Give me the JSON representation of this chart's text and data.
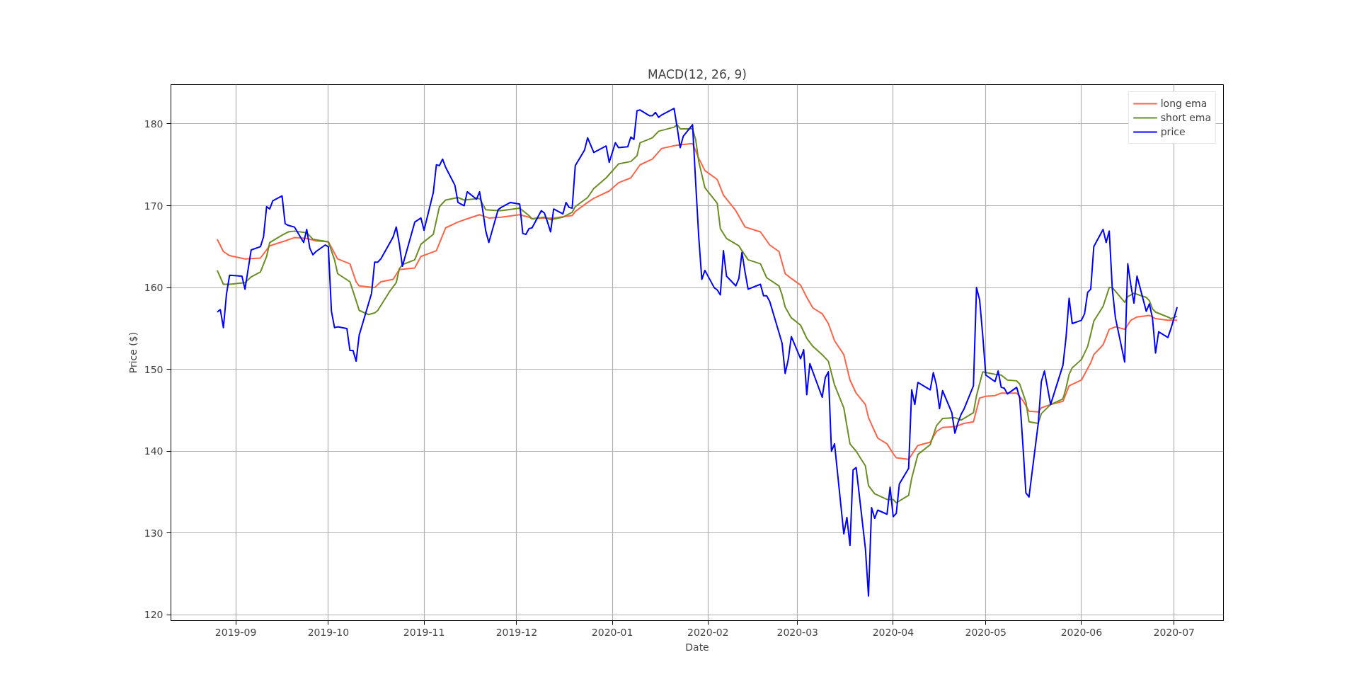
{
  "chart_data": {
    "type": "line",
    "title": "MACD(12, 26, 9)",
    "xlabel": "Date",
    "ylabel": "Price ($)",
    "xlim": [
      "2019-08-11",
      "2020-07-17"
    ],
    "ylim": [
      119.3,
      184.8
    ],
    "xticks": [
      "2019-09",
      "2019-10",
      "2019-11",
      "2019-12",
      "2020-01",
      "2020-02",
      "2020-03",
      "2020-04",
      "2020-05",
      "2020-06",
      "2020-07"
    ],
    "yticks": [
      120,
      130,
      140,
      150,
      160,
      170,
      180
    ],
    "grid": true,
    "legend": "top right",
    "line_style": "solid",
    "series": [
      {
        "name": "long ema",
        "color": "#ff6347",
        "x": [
          "2019-08-26",
          "2019-08-28",
          "2019-08-30",
          "2019-09-04",
          "2019-09-09",
          "2019-09-12",
          "2019-09-17",
          "2019-09-20",
          "2019-09-24",
          "2019-09-27",
          "2019-10-01",
          "2019-10-04",
          "2019-10-08",
          "2019-10-10",
          "2019-10-11",
          "2019-10-16",
          "2019-10-18",
          "2019-10-22",
          "2019-10-24",
          "2019-10-29",
          "2019-10-31",
          "2019-11-05",
          "2019-11-08",
          "2019-11-12",
          "2019-11-15",
          "2019-11-19",
          "2019-11-22",
          "2019-11-26",
          "2019-12-02",
          "2019-12-05",
          "2019-12-06",
          "2019-12-10",
          "2019-12-13",
          "2019-12-17",
          "2019-12-19",
          "2019-12-20",
          "2019-12-24",
          "2019-12-26",
          "2019-12-31",
          "2020-01-03",
          "2020-01-07",
          "2020-01-10",
          "2020-01-14",
          "2020-01-17",
          "2020-01-22",
          "2020-01-27",
          "2020-01-29",
          "2020-01-31",
          "2020-02-04",
          "2020-02-06",
          "2020-02-10",
          "2020-02-13",
          "2020-02-18",
          "2020-02-21",
          "2020-02-24",
          "2020-02-26",
          "2020-02-28",
          "2020-03-02",
          "2020-03-04",
          "2020-03-06",
          "2020-03-09",
          "2020-03-11",
          "2020-03-13",
          "2020-03-16",
          "2020-03-18",
          "2020-03-20",
          "2020-03-23",
          "2020-03-24",
          "2020-03-27",
          "2020-03-30",
          "2020-04-01",
          "2020-04-02",
          "2020-04-06",
          "2020-04-09",
          "2020-04-13",
          "2020-04-15",
          "2020-04-17",
          "2020-04-21",
          "2020-04-24",
          "2020-04-27",
          "2020-04-29",
          "2020-05-01",
          "2020-05-04",
          "2020-05-06",
          "2020-05-11",
          "2020-05-13",
          "2020-05-15",
          "2020-05-18",
          "2020-05-19",
          "2020-05-22",
          "2020-05-26",
          "2020-05-28",
          "2020-06-01",
          "2020-06-04",
          "2020-06-05",
          "2020-06-08",
          "2020-06-10",
          "2020-06-12",
          "2020-06-15",
          "2020-06-17",
          "2020-06-19",
          "2020-06-23",
          "2020-06-25",
          "2020-06-29",
          "2020-07-02"
        ],
        "values": [
          165.9,
          164.4,
          163.9,
          163.5,
          163.6,
          165.1,
          165.7,
          166.1,
          166.0,
          165.7,
          165.6,
          163.5,
          162.9,
          160.7,
          160.2,
          160.0,
          160.7,
          161.0,
          162.2,
          162.4,
          163.8,
          164.5,
          167.3,
          168.0,
          168.4,
          168.9,
          168.5,
          168.6,
          168.9,
          168.6,
          168.4,
          168.5,
          168.5,
          168.7,
          168.8,
          169.3,
          170.4,
          170.9,
          171.8,
          172.8,
          173.4,
          175.0,
          175.7,
          177.0,
          177.4,
          177.6,
          175.8,
          174.3,
          173.2,
          171.3,
          169.4,
          167.4,
          166.8,
          165.2,
          164.4,
          161.7,
          161.1,
          160.3,
          158.8,
          157.5,
          156.8,
          155.6,
          153.5,
          151.8,
          148.7,
          147.1,
          145.7,
          144.1,
          141.6,
          140.9,
          139.7,
          139.2,
          139.0,
          140.7,
          141.1,
          142.4,
          142.9,
          143.0,
          143.4,
          143.6,
          146.5,
          146.7,
          146.8,
          147.1,
          147.1,
          146.2,
          144.9,
          144.8,
          145.3,
          145.7,
          146.1,
          148.0,
          148.7,
          150.8,
          151.8,
          153.0,
          154.9,
          155.2,
          154.9,
          156.0,
          156.4,
          156.6,
          156.2,
          156.0,
          156.0
        ]
      },
      {
        "name": "short ema",
        "color": "#6b8e23",
        "x": [
          "2019-08-26",
          "2019-08-28",
          "2019-08-30",
          "2019-09-04",
          "2019-09-06",
          "2019-09-09",
          "2019-09-11",
          "2019-09-12",
          "2019-09-16",
          "2019-09-18",
          "2019-09-20",
          "2019-09-24",
          "2019-09-26",
          "2019-10-01",
          "2019-10-03",
          "2019-10-04",
          "2019-10-08",
          "2019-10-10",
          "2019-10-11",
          "2019-10-14",
          "2019-10-16",
          "2019-10-17",
          "2019-10-21",
          "2019-10-23",
          "2019-10-24",
          "2019-10-25",
          "2019-10-29",
          "2019-10-31",
          "2019-11-04",
          "2019-11-06",
          "2019-11-08",
          "2019-11-12",
          "2019-11-14",
          "2019-11-19",
          "2019-11-21",
          "2019-11-25",
          "2019-11-26",
          "2019-12-02",
          "2019-12-05",
          "2019-12-06",
          "2019-12-10",
          "2019-12-12",
          "2019-12-16",
          "2019-12-19",
          "2019-12-20",
          "2019-12-24",
          "2019-12-26",
          "2019-12-30",
          "2020-01-03",
          "2020-01-07",
          "2020-01-09",
          "2020-01-10",
          "2020-01-14",
          "2020-01-16",
          "2020-01-21",
          "2020-01-22",
          "2020-01-23",
          "2020-01-27",
          "2020-01-28",
          "2020-01-29",
          "2020-01-31",
          "2020-02-04",
          "2020-02-05",
          "2020-02-07",
          "2020-02-11",
          "2020-02-12",
          "2020-02-14",
          "2020-02-18",
          "2020-02-20",
          "2020-02-24",
          "2020-02-25",
          "2020-02-26",
          "2020-02-28",
          "2020-03-02",
          "2020-03-04",
          "2020-03-06",
          "2020-03-09",
          "2020-03-11",
          "2020-03-13",
          "2020-03-16",
          "2020-03-18",
          "2020-03-20",
          "2020-03-23",
          "2020-03-24",
          "2020-03-26",
          "2020-03-30",
          "2020-04-01",
          "2020-04-02",
          "2020-04-06",
          "2020-04-07",
          "2020-04-09",
          "2020-04-13",
          "2020-04-15",
          "2020-04-17",
          "2020-04-21",
          "2020-04-23",
          "2020-04-27",
          "2020-04-28",
          "2020-04-30",
          "2020-05-04",
          "2020-05-06",
          "2020-05-08",
          "2020-05-11",
          "2020-05-12",
          "2020-05-14",
          "2020-05-15",
          "2020-05-18",
          "2020-05-19",
          "2020-05-22",
          "2020-05-26",
          "2020-05-27",
          "2020-05-28",
          "2020-05-29",
          "2020-06-01",
          "2020-06-03",
          "2020-06-04",
          "2020-06-05",
          "2020-06-08",
          "2020-06-10",
          "2020-06-11",
          "2020-06-15",
          "2020-06-16",
          "2020-06-17",
          "2020-06-18",
          "2020-06-22",
          "2020-06-23",
          "2020-06-24",
          "2020-06-25",
          "2020-06-29",
          "2020-06-30",
          "2020-07-02"
        ],
        "values": [
          162.1,
          160.4,
          160.4,
          160.6,
          161.3,
          161.9,
          163.8,
          165.5,
          166.4,
          166.8,
          166.9,
          166.7,
          165.9,
          165.6,
          163.4,
          161.7,
          160.7,
          158.4,
          157.2,
          156.7,
          156.9,
          157.2,
          159.6,
          160.6,
          162.3,
          162.8,
          163.4,
          165.3,
          166.5,
          169.9,
          170.7,
          171.0,
          170.7,
          170.9,
          169.5,
          169.4,
          169.4,
          169.7,
          168.8,
          168.4,
          168.6,
          168.3,
          168.6,
          169.2,
          169.9,
          171.0,
          172.1,
          173.4,
          175.1,
          175.4,
          176.1,
          177.7,
          178.3,
          179.1,
          179.6,
          179.9,
          179.4,
          179.4,
          178.1,
          175.4,
          172.2,
          170.3,
          167.2,
          166.0,
          165.1,
          164.5,
          163.4,
          162.9,
          161.2,
          160.2,
          159.1,
          157.6,
          156.3,
          155.4,
          153.8,
          152.8,
          151.8,
          151.0,
          148.1,
          145.3,
          140.9,
          140.0,
          138.2,
          135.8,
          134.8,
          134.1,
          134.1,
          133.7,
          134.6,
          136.7,
          139.6,
          140.8,
          143.1,
          144.0,
          144.1,
          143.8,
          144.7,
          146.8,
          149.7,
          149.4,
          149.3,
          148.7,
          148.6,
          148.2,
          146.0,
          143.6,
          143.4,
          144.6,
          145.7,
          146.4,
          147.7,
          149.4,
          150.2,
          151.2,
          152.8,
          154.3,
          155.9,
          157.7,
          160.0,
          160.0,
          158.2,
          158.9,
          159.1,
          159.3,
          158.8,
          158.4,
          157.4,
          157.0,
          156.4,
          156.2,
          156.5
        ]
      },
      {
        "name": "price",
        "color": "#0000ff",
        "x": [
          "2019-08-26",
          "2019-08-27",
          "2019-08-28",
          "2019-08-29",
          "2019-08-30",
          "2019-09-03",
          "2019-09-04",
          "2019-09-06",
          "2019-09-09",
          "2019-09-10",
          "2019-09-11",
          "2019-09-12",
          "2019-09-13",
          "2019-09-16",
          "2019-09-17",
          "2019-09-18",
          "2019-09-19",
          "2019-09-20",
          "2019-09-23",
          "2019-09-24",
          "2019-09-25",
          "2019-09-26",
          "2019-09-27",
          "2019-09-30",
          "2019-10-01",
          "2019-10-02",
          "2019-10-03",
          "2019-10-04",
          "2019-10-07",
          "2019-10-08",
          "2019-10-09",
          "2019-10-10",
          "2019-10-11",
          "2019-10-15",
          "2019-10-16",
          "2019-10-17",
          "2019-10-18",
          "2019-10-21",
          "2019-10-22",
          "2019-10-23",
          "2019-10-24",
          "2019-10-25",
          "2019-10-29",
          "2019-10-31",
          "2019-11-01",
          "2019-11-04",
          "2019-11-05",
          "2019-11-06",
          "2019-11-07",
          "2019-11-08",
          "2019-11-11",
          "2019-11-12",
          "2019-11-14",
          "2019-11-15",
          "2019-11-18",
          "2019-11-19",
          "2019-11-20",
          "2019-11-21",
          "2019-11-22",
          "2019-11-25",
          "2019-11-26",
          "2019-11-29",
          "2019-12-02",
          "2019-12-03",
          "2019-12-04",
          "2019-12-05",
          "2019-12-06",
          "2019-12-09",
          "2019-12-10",
          "2019-12-11",
          "2019-12-12",
          "2019-12-13",
          "2019-12-16",
          "2019-12-17",
          "2019-12-18",
          "2019-12-19",
          "2019-12-20",
          "2019-12-23",
          "2019-12-24",
          "2019-12-26",
          "2019-12-30",
          "2019-12-31",
          "2020-01-02",
          "2020-01-03",
          "2020-01-06",
          "2020-01-07",
          "2020-01-08",
          "2020-01-09",
          "2020-01-10",
          "2020-01-13",
          "2020-01-14",
          "2020-01-15",
          "2020-01-16",
          "2020-01-17",
          "2020-01-21",
          "2020-01-22",
          "2020-01-23",
          "2020-01-24",
          "2020-01-27",
          "2020-01-28",
          "2020-01-29",
          "2020-01-30",
          "2020-01-31",
          "2020-02-03",
          "2020-02-04",
          "2020-02-05",
          "2020-02-06",
          "2020-02-07",
          "2020-02-10",
          "2020-02-11",
          "2020-02-12",
          "2020-02-13",
          "2020-02-14",
          "2020-02-18",
          "2020-02-19",
          "2020-02-20",
          "2020-02-21",
          "2020-02-24",
          "2020-02-25",
          "2020-02-26",
          "2020-02-27",
          "2020-02-28",
          "2020-03-02",
          "2020-03-03",
          "2020-03-04",
          "2020-03-05",
          "2020-03-09",
          "2020-03-10",
          "2020-03-11",
          "2020-03-12",
          "2020-03-13",
          "2020-03-16",
          "2020-03-17",
          "2020-03-18",
          "2020-03-19",
          "2020-03-20",
          "2020-03-23",
          "2020-03-24",
          "2020-03-25",
          "2020-03-26",
          "2020-03-27",
          "2020-03-30",
          "2020-03-31",
          "2020-04-01",
          "2020-04-02",
          "2020-04-03",
          "2020-04-06",
          "2020-04-07",
          "2020-04-08",
          "2020-04-09",
          "2020-04-13",
          "2020-04-14",
          "2020-04-15",
          "2020-04-16",
          "2020-04-17",
          "2020-04-20",
          "2020-04-21",
          "2020-04-22",
          "2020-04-23",
          "2020-04-24",
          "2020-04-27",
          "2020-04-28",
          "2020-04-29",
          "2020-04-30",
          "2020-05-01",
          "2020-05-04",
          "2020-05-05",
          "2020-05-06",
          "2020-05-07",
          "2020-05-08",
          "2020-05-11",
          "2020-05-12",
          "2020-05-13",
          "2020-05-14",
          "2020-05-15",
          "2020-05-18",
          "2020-05-19",
          "2020-05-20",
          "2020-05-22",
          "2020-05-26",
          "2020-05-27",
          "2020-05-28",
          "2020-05-29",
          "2020-06-01",
          "2020-06-02",
          "2020-06-03",
          "2020-06-04",
          "2020-06-05",
          "2020-06-08",
          "2020-06-09",
          "2020-06-10",
          "2020-06-11",
          "2020-06-12",
          "2020-06-15",
          "2020-06-16",
          "2020-06-17",
          "2020-06-18",
          "2020-06-19",
          "2020-06-22",
          "2020-06-23",
          "2020-06-24",
          "2020-06-25",
          "2020-06-26",
          "2020-06-29",
          "2020-06-30",
          "2020-07-02"
        ],
        "values": [
          157.0,
          157.3,
          155.1,
          159.2,
          161.5,
          161.4,
          159.8,
          164.6,
          165.0,
          166.2,
          169.9,
          169.6,
          170.6,
          171.2,
          167.8,
          167.6,
          167.5,
          167.4,
          165.5,
          167.1,
          164.8,
          164.0,
          164.4,
          165.2,
          165.0,
          157.1,
          155.1,
          155.2,
          155.0,
          152.3,
          152.3,
          151.0,
          154.2,
          159.3,
          163.1,
          163.1,
          163.5,
          165.5,
          166.2,
          167.4,
          165.3,
          162.6,
          168.0,
          168.5,
          167.0,
          171.6,
          175.0,
          174.9,
          175.7,
          174.7,
          172.5,
          170.4,
          170.0,
          171.7,
          170.8,
          171.7,
          169.5,
          166.9,
          165.5,
          169.5,
          169.8,
          170.4,
          170.2,
          166.6,
          166.5,
          167.2,
          167.3,
          169.4,
          169.1,
          168.0,
          166.8,
          169.6,
          169.0,
          170.4,
          169.8,
          169.7,
          174.9,
          176.8,
          178.3,
          176.5,
          177.3,
          175.3,
          177.7,
          177.1,
          177.2,
          178.4,
          178.1,
          181.6,
          181.7,
          181.0,
          181.0,
          181.4,
          180.8,
          181.1,
          181.9,
          179.6,
          177.1,
          178.5,
          179.9,
          172.9,
          166.2,
          161.0,
          162.1,
          160.0,
          159.7,
          159.1,
          164.5,
          161.4,
          160.2,
          161.1,
          164.3,
          161.9,
          159.8,
          160.4,
          159.0,
          159.0,
          158.3,
          154.5,
          153.2,
          149.5,
          151.2,
          154.0,
          151.3,
          152.4,
          146.9,
          150.7,
          146.6,
          149.0,
          149.7,
          140.0,
          140.9,
          129.9,
          131.9,
          128.5,
          137.7,
          138.0,
          128.1,
          122.3,
          133.1,
          131.8,
          132.8,
          132.3,
          135.6,
          132.0,
          132.4,
          136.0,
          137.9,
          147.5,
          145.7,
          148.4,
          147.5,
          149.6,
          148.1,
          145.2,
          147.4,
          144.7,
          142.2,
          143.5,
          144.5,
          145.2,
          148.0,
          160.0,
          158.5,
          154.2,
          149.3,
          148.5,
          149.8,
          147.8,
          147.7,
          147.0,
          147.8,
          146.5,
          140.9,
          134.9,
          134.4,
          143.4,
          148.5,
          149.8,
          145.7,
          150.5,
          153.9,
          158.7,
          155.6,
          156.0,
          156.8,
          159.4,
          159.8,
          165.0,
          167.1,
          165.5,
          166.9,
          159.8,
          156.3,
          150.9,
          162.9,
          160.3,
          158.1,
          161.4,
          157.1,
          158.0,
          156.3,
          152.0,
          154.6,
          153.9,
          155.0,
          157.6
        ]
      }
    ]
  }
}
